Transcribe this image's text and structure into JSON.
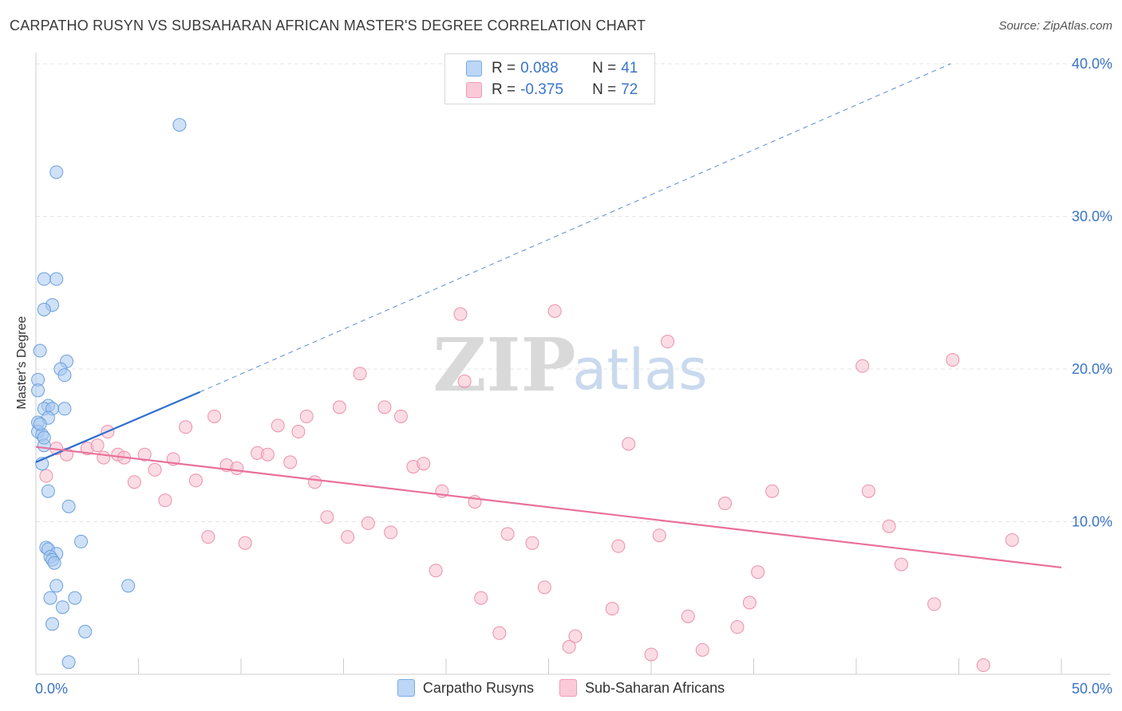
{
  "header": {
    "title": "CARPATHO RUSYN VS SUBSAHARAN AFRICAN MASTER'S DEGREE CORRELATION CHART",
    "source": "Source: ZipAtlas.com"
  },
  "watermark": {
    "zip": "ZIP",
    "atlas": "atlas"
  },
  "legend_top": {
    "rows": [
      {
        "r_label": "R =",
        "r_value": "0.088",
        "n_label": "N =",
        "n_value": "41",
        "color": "#a8c8f0"
      },
      {
        "r_label": "R =",
        "r_value": "-0.375",
        "n_label": "N =",
        "n_value": "72",
        "color": "#f8b8cc"
      }
    ]
  },
  "legend_bottom": [
    {
      "label": "Carpatho Rusyns",
      "color": "#a8c8f0"
    },
    {
      "label": "Sub-Saharan Africans",
      "color": "#f8b8cc"
    }
  ],
  "colors": {
    "blue_fill": "#a8c8f0",
    "blue_stroke": "#6a9fdc",
    "blue_line": "#2f6fcf",
    "pink_fill": "#f8c0d0",
    "pink_stroke": "#ec90ab",
    "pink_line": "#e8709a",
    "tick_text": "#3a74c8",
    "grid": "#e4e4e4"
  },
  "chart_data": {
    "type": "scatter",
    "title": "CARPATHO RUSYN VS SUBSAHARAN AFRICAN MASTER'S DEGREE CORRELATION CHART",
    "xlabel": "",
    "ylabel": "Master's Degree",
    "xlim": [
      0,
      50
    ],
    "ylim": [
      0,
      40
    ],
    "x_tick_labels": [
      {
        "value": 0,
        "label": "0.0%"
      },
      {
        "value": 50,
        "label": "50.0%"
      }
    ],
    "y_tick_labels": [
      {
        "value": 10,
        "label": "10.0%"
      },
      {
        "value": 20,
        "label": "20.0%"
      },
      {
        "value": 30,
        "label": "30.0%"
      },
      {
        "value": 40,
        "label": "40.0%"
      }
    ],
    "series": [
      {
        "name": "Carpatho Rusyns",
        "r": 0.088,
        "n": 41,
        "points": [
          [
            7.0,
            36.0
          ],
          [
            1.0,
            32.9
          ],
          [
            0.4,
            25.9
          ],
          [
            1.0,
            25.9
          ],
          [
            0.8,
            24.2
          ],
          [
            0.4,
            23.9
          ],
          [
            0.2,
            21.2
          ],
          [
            1.5,
            20.5
          ],
          [
            1.2,
            20.0
          ],
          [
            1.4,
            19.6
          ],
          [
            0.1,
            19.3
          ],
          [
            0.1,
            18.6
          ],
          [
            0.6,
            17.6
          ],
          [
            0.4,
            17.4
          ],
          [
            0.8,
            17.4
          ],
          [
            1.4,
            17.4
          ],
          [
            0.6,
            16.8
          ],
          [
            0.1,
            16.5
          ],
          [
            0.1,
            15.9
          ],
          [
            0.3,
            15.7
          ],
          [
            0.4,
            15.0
          ],
          [
            0.3,
            13.8
          ],
          [
            0.6,
            12.0
          ],
          [
            1.6,
            11.0
          ],
          [
            2.2,
            8.7
          ],
          [
            0.5,
            8.3
          ],
          [
            0.6,
            8.2
          ],
          [
            1.0,
            7.9
          ],
          [
            0.7,
            7.7
          ],
          [
            0.8,
            7.5
          ],
          [
            0.9,
            7.3
          ],
          [
            4.5,
            5.8
          ],
          [
            1.0,
            5.8
          ],
          [
            0.7,
            5.0
          ],
          [
            1.9,
            5.0
          ],
          [
            1.3,
            4.4
          ],
          [
            0.8,
            3.3
          ],
          [
            2.4,
            2.8
          ],
          [
            1.6,
            0.8
          ],
          [
            0.4,
            15.5
          ],
          [
            0.2,
            16.4
          ]
        ],
        "trend": {
          "x0": 0,
          "y0": 13.9,
          "x1": 8.0,
          "y1": 18.5,
          "dash_to_x": 44.6,
          "dash_to_y": 40.0
        }
      },
      {
        "name": "Sub-Saharan Africans",
        "r": -0.375,
        "n": 72,
        "points": [
          [
            0.5,
            13.0
          ],
          [
            1.0,
            14.8
          ],
          [
            1.5,
            14.4
          ],
          [
            2.5,
            14.8
          ],
          [
            3.0,
            15.0
          ],
          [
            3.5,
            15.9
          ],
          [
            3.3,
            14.2
          ],
          [
            4.0,
            14.4
          ],
          [
            4.3,
            14.2
          ],
          [
            4.8,
            12.6
          ],
          [
            5.3,
            14.4
          ],
          [
            5.8,
            13.4
          ],
          [
            6.3,
            11.4
          ],
          [
            6.7,
            14.1
          ],
          [
            7.3,
            16.2
          ],
          [
            7.8,
            12.7
          ],
          [
            8.4,
            9.0
          ],
          [
            8.7,
            16.9
          ],
          [
            9.3,
            13.7
          ],
          [
            9.8,
            13.5
          ],
          [
            10.2,
            8.6
          ],
          [
            10.8,
            14.5
          ],
          [
            11.3,
            14.4
          ],
          [
            11.8,
            16.3
          ],
          [
            12.4,
            13.9
          ],
          [
            12.8,
            15.9
          ],
          [
            13.2,
            16.9
          ],
          [
            13.6,
            12.6
          ],
          [
            14.2,
            10.3
          ],
          [
            14.8,
            17.5
          ],
          [
            15.2,
            9.0
          ],
          [
            15.8,
            19.7
          ],
          [
            16.2,
            9.9
          ],
          [
            17.0,
            17.5
          ],
          [
            17.3,
            9.3
          ],
          [
            17.8,
            16.9
          ],
          [
            18.4,
            13.6
          ],
          [
            18.9,
            13.8
          ],
          [
            19.5,
            6.8
          ],
          [
            19.8,
            12.0
          ],
          [
            20.7,
            23.6
          ],
          [
            20.9,
            19.2
          ],
          [
            21.4,
            11.3
          ],
          [
            21.7,
            5.0
          ],
          [
            22.6,
            2.7
          ],
          [
            23.0,
            9.2
          ],
          [
            24.2,
            8.6
          ],
          [
            24.8,
            5.7
          ],
          [
            25.3,
            23.8
          ],
          [
            26.0,
            1.8
          ],
          [
            26.3,
            2.5
          ],
          [
            28.1,
            4.3
          ],
          [
            28.4,
            8.4
          ],
          [
            28.9,
            15.1
          ],
          [
            30.0,
            1.3
          ],
          [
            30.4,
            9.1
          ],
          [
            30.8,
            21.8
          ],
          [
            31.8,
            3.8
          ],
          [
            32.5,
            1.6
          ],
          [
            33.6,
            11.2
          ],
          [
            34.2,
            3.1
          ],
          [
            34.8,
            4.7
          ],
          [
            35.2,
            6.7
          ],
          [
            35.9,
            12.0
          ],
          [
            40.3,
            20.2
          ],
          [
            40.6,
            12.0
          ],
          [
            41.6,
            9.7
          ],
          [
            42.2,
            7.2
          ],
          [
            43.8,
            4.6
          ],
          [
            44.7,
            20.6
          ],
          [
            46.2,
            0.6
          ],
          [
            47.6,
            8.8
          ]
        ],
        "trend": {
          "x0": 0,
          "y0": 14.9,
          "x1": 50,
          "y1": 7.0
        }
      }
    ]
  }
}
